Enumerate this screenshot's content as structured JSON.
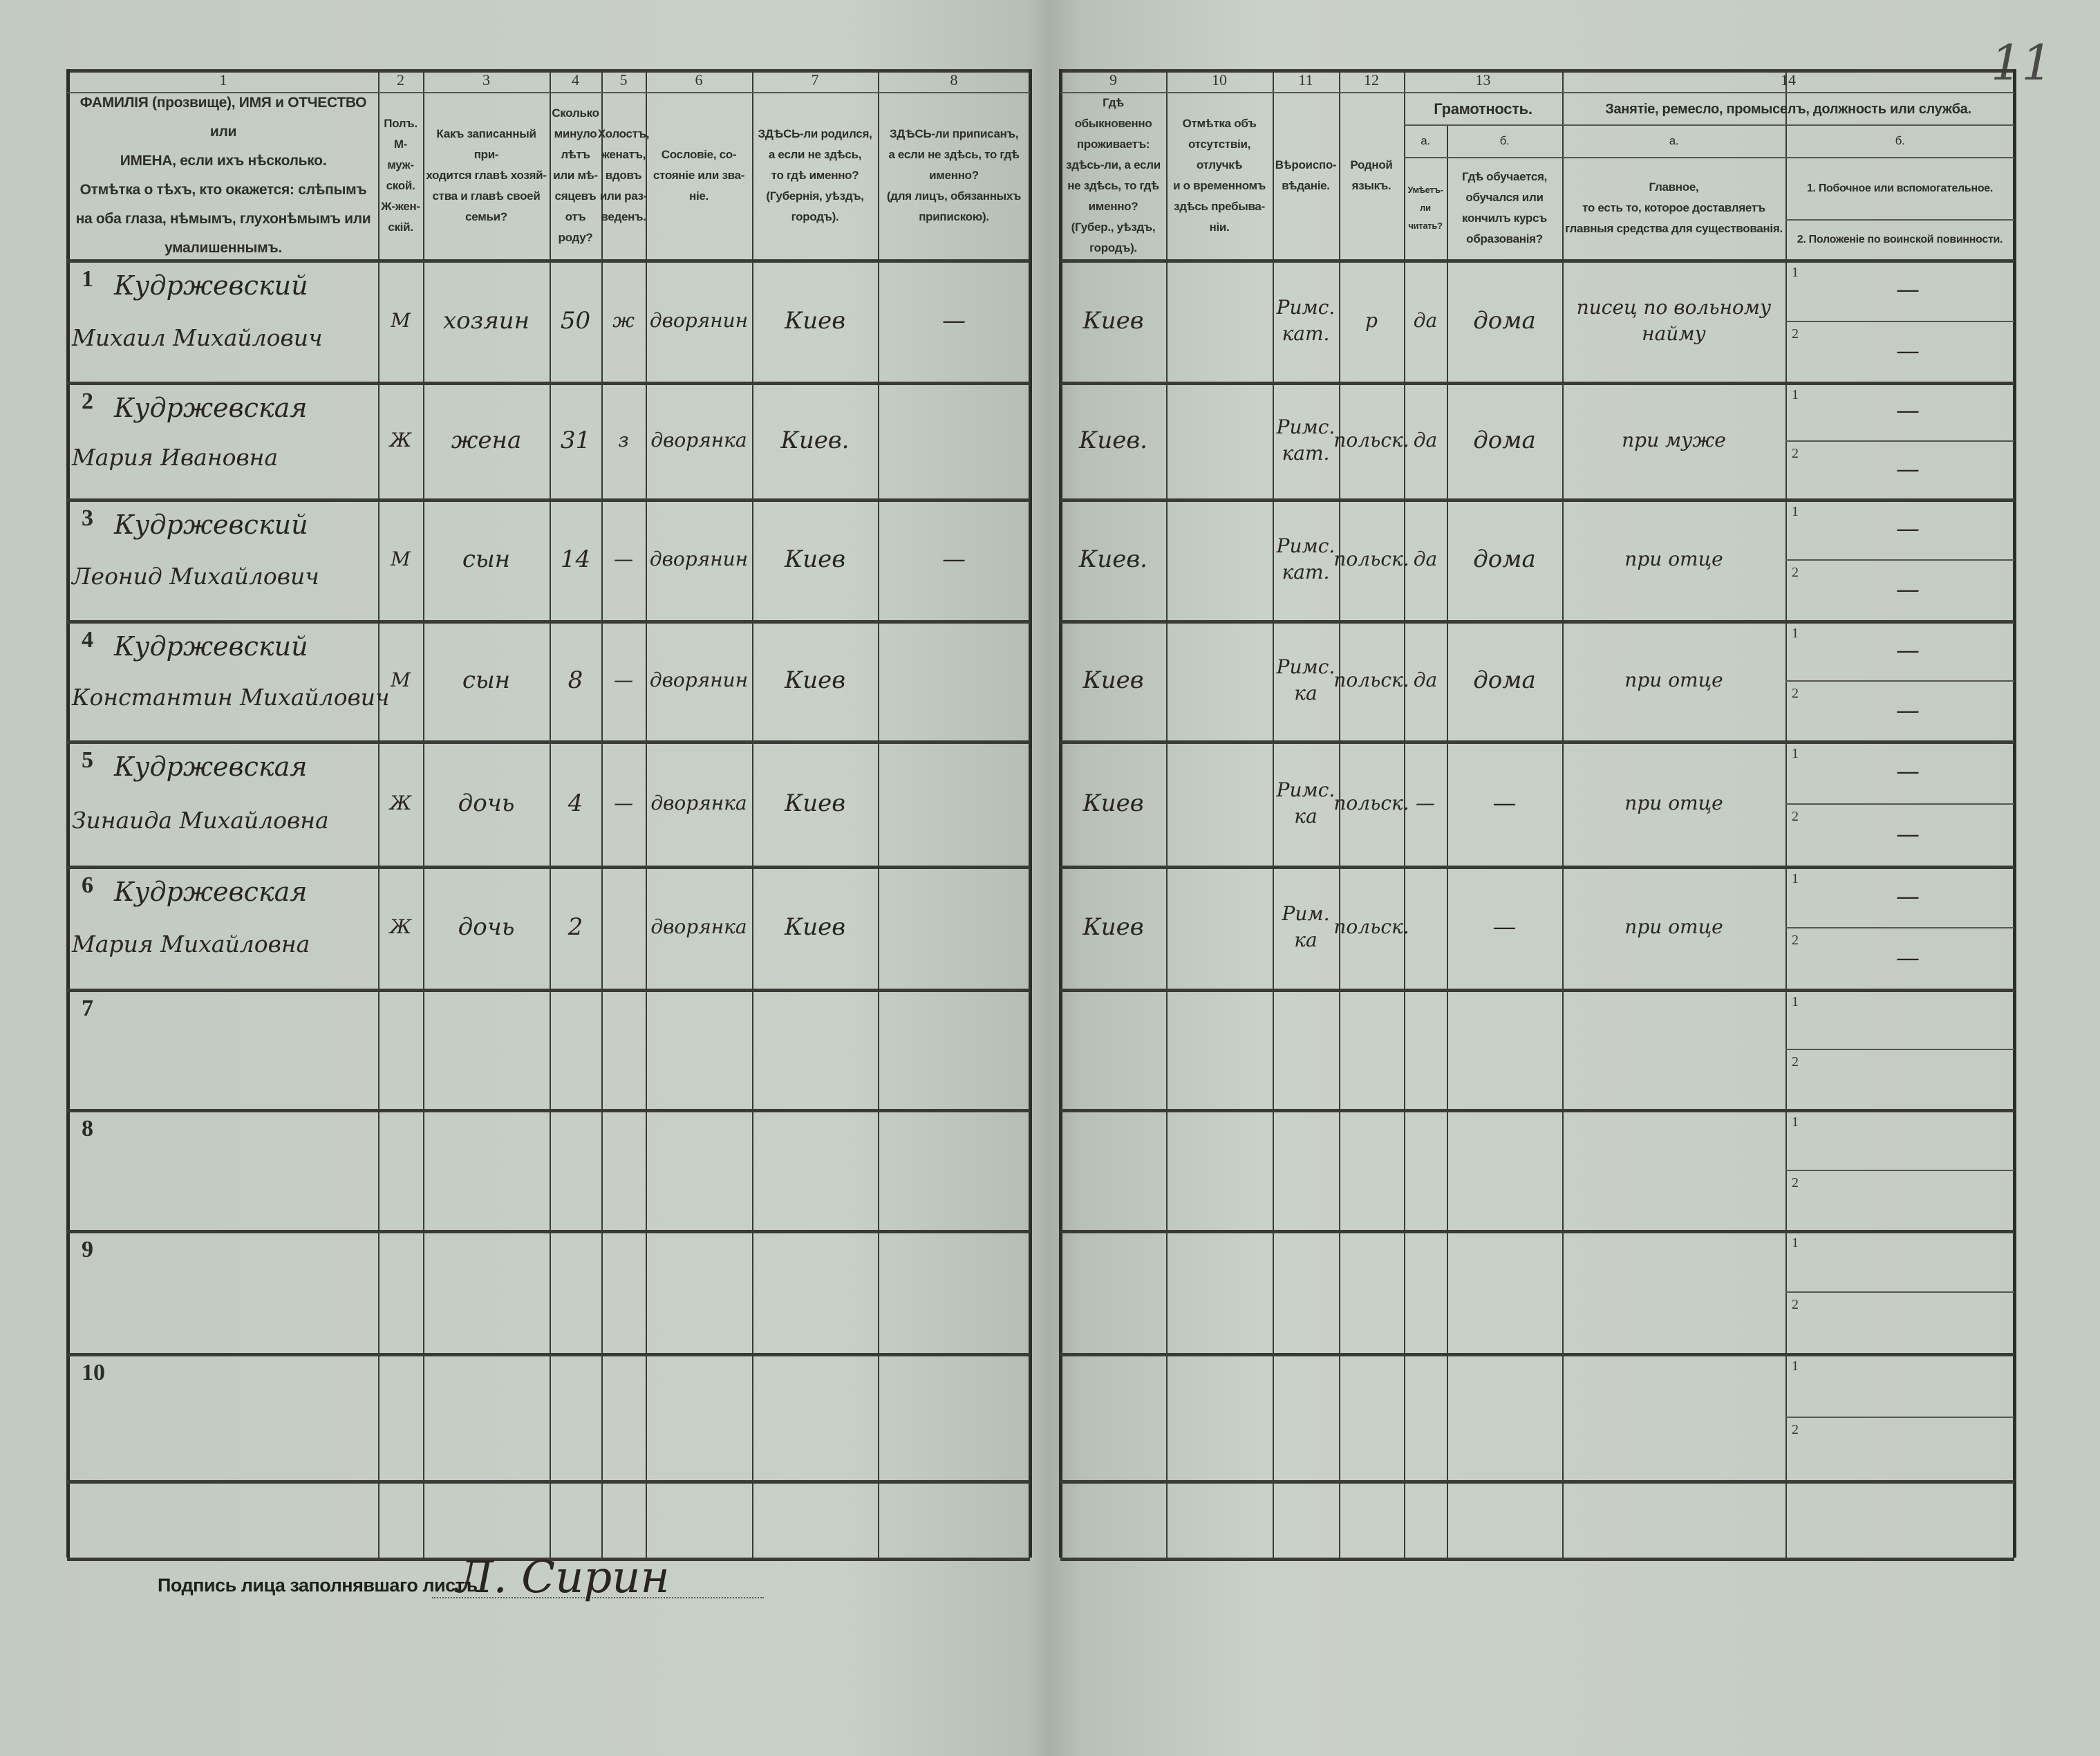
{
  "page_number": "11",
  "column_numbers": {
    "c1": "1",
    "c2": "2",
    "c3": "3",
    "c4": "4",
    "c5": "5",
    "c6": "6",
    "c7": "7",
    "c8": "8",
    "c9": "9",
    "c10": "10",
    "c11": "11",
    "c12": "12",
    "c13": "13",
    "c14": "14"
  },
  "headers": {
    "c1": "ФАМИЛІЯ (прозвище), ИМЯ и ОТЧЕСТВО или\nИМЕНА, если ихъ нѣсколько.\nОтмѣтка о тѣхъ, кто окажется: слѣпымъ\nна оба глаза, нѣмымъ, глухонѣмымъ или\nумалишеннымъ.",
    "c2": "Полъ.\nМ-муж-\nской.\nЖ-жен-\nскій.",
    "c3": "Какъ записанный при-\nходится главѣ хозяй-\nства и главѣ своей\nсемьи?",
    "c4": "Сколько\nминуло\nлѣтъ\nили мѣ-\nсяцевъ\nотъ роду?",
    "c5": "Холостъ,\nженатъ,\nвдовъ\nили раз-\nведенъ.",
    "c6": "Сословіе, со-\nстояніе или зва-\nніе.",
    "c7": "ЗДѢСЬ-ли родился,\nа если не здѣсь,\nто гдѣ именно?\n(Губернія, уѣздъ, городъ).",
    "c8": "ЗДѢСЬ-ли приписанъ,\nа если не здѣсь, то гдѣ\nименно?\n(для лицъ, обязанныхъ\nприпискою).",
    "c9": "Гдѣ обыкновенно\nпроживаетъ:\nздѣсь-ли, а если\nне здѣсь, то гдѣ\nименно?\n(Губер., уѣздъ, городъ).",
    "c10": "Отмѣтка объ\nотсутствіи, отлучкѣ\nи о временномъ\nздѣсь пребыва-\nніи.",
    "c11": "Вѣроиспо-\nвѣданіе.",
    "c12": "Родной\nязыкъ.",
    "c13": "Грамотность.",
    "c13a_letter": "а.",
    "c13b_letter": "б.",
    "c13a": "Умѣетъ-\nли\nчитать?",
    "c13b": "Гдѣ обучается,\nобучался или\nкончилъ курсъ\nобразованія?",
    "c14": "Занятіе, ремесло, промыселъ, должность или служба.",
    "c14a_letter": "а.",
    "c14b_letter": "б.",
    "c14a": "Главное,\nто есть то, которое доставляетъ\nглавныя средства для существованія.",
    "c14b1": "1. Побочное или вспомогательное.",
    "c14b2": "2. Положеніе по воинской повинности."
  },
  "sub_labels": {
    "one": "1",
    "two": "2"
  },
  "row_numbers": [
    "1",
    "2",
    "3",
    "4",
    "5",
    "6",
    "7",
    "8",
    "9",
    "10"
  ],
  "persons": [
    {
      "surname": "Кудржевский",
      "name": "Михаил Михайлович",
      "sex": "М",
      "relation": "хозяин",
      "age": "50",
      "marital": "ж",
      "estate": "дворянин",
      "birthplace": "Киев",
      "registered": "—",
      "residence": "Киев",
      "absence": "",
      "religion": "Римс. кат.",
      "language": "р",
      "literate": "да",
      "education": "дома",
      "occupation": "писец по вольному найму",
      "side1": "—",
      "side2": "—"
    },
    {
      "surname": "Кудржевская",
      "name": "Мария Ивановна",
      "sex": "Ж",
      "relation": "жена",
      "age": "31",
      "marital": "з",
      "estate": "дворянка",
      "birthplace": "Киев.",
      "registered": "",
      "residence": "Киев.",
      "absence": "",
      "religion": "Римс. кат.",
      "language": "польск.",
      "literate": "да",
      "education": "дома",
      "occupation": "при муже",
      "side1": "—",
      "side2": "—"
    },
    {
      "surname": "Кудржевский",
      "name": "Леонид Михайлович",
      "sex": "М",
      "relation": "сын",
      "age": "14",
      "marital": "—",
      "estate": "дворянин",
      "birthplace": "Киев",
      "registered": "—",
      "residence": "Киев.",
      "absence": "",
      "religion": "Римс. кат.",
      "language": "польск.",
      "literate": "да",
      "education": "дома",
      "occupation": "при отце",
      "side1": "—",
      "side2": "—"
    },
    {
      "surname": "Кудржевский",
      "name": "Константин Михайлович",
      "sex": "М",
      "relation": "сын",
      "age": "8",
      "marital": "—",
      "estate": "дворянин",
      "birthplace": "Киев",
      "registered": "",
      "residence": "Киев",
      "absence": "",
      "religion": "Римс. ка",
      "language": "польск.",
      "literate": "да",
      "education": "дома",
      "occupation": "при отце",
      "side1": "—",
      "side2": "—"
    },
    {
      "surname": "Кудржевская",
      "name": "Зинаида Михайловна",
      "sex": "Ж",
      "relation": "дочь",
      "age": "4",
      "marital": "—",
      "estate": "дворянка",
      "birthplace": "Киев",
      "registered": "",
      "residence": "Киев",
      "absence": "",
      "religion": "Римс. ка",
      "language": "польск.",
      "literate": "—",
      "education": "—",
      "occupation": "при отце",
      "side1": "—",
      "side2": "—"
    },
    {
      "surname": "Кудржевская",
      "name": "Мария Михайловна",
      "sex": "Ж",
      "relation": "дочь",
      "age": "2",
      "marital": "",
      "estate": "дворянка",
      "birthplace": "Киев",
      "registered": "",
      "residence": "Киев",
      "absence": "",
      "religion": "Рим. ка",
      "language": "польск.",
      "literate": "",
      "education": "—",
      "occupation": "при отце",
      "side1": "—",
      "side2": "—"
    }
  ],
  "signature": {
    "label": "Подпись лица заполнявшаго листъ",
    "value": "Л. Сирин"
  }
}
